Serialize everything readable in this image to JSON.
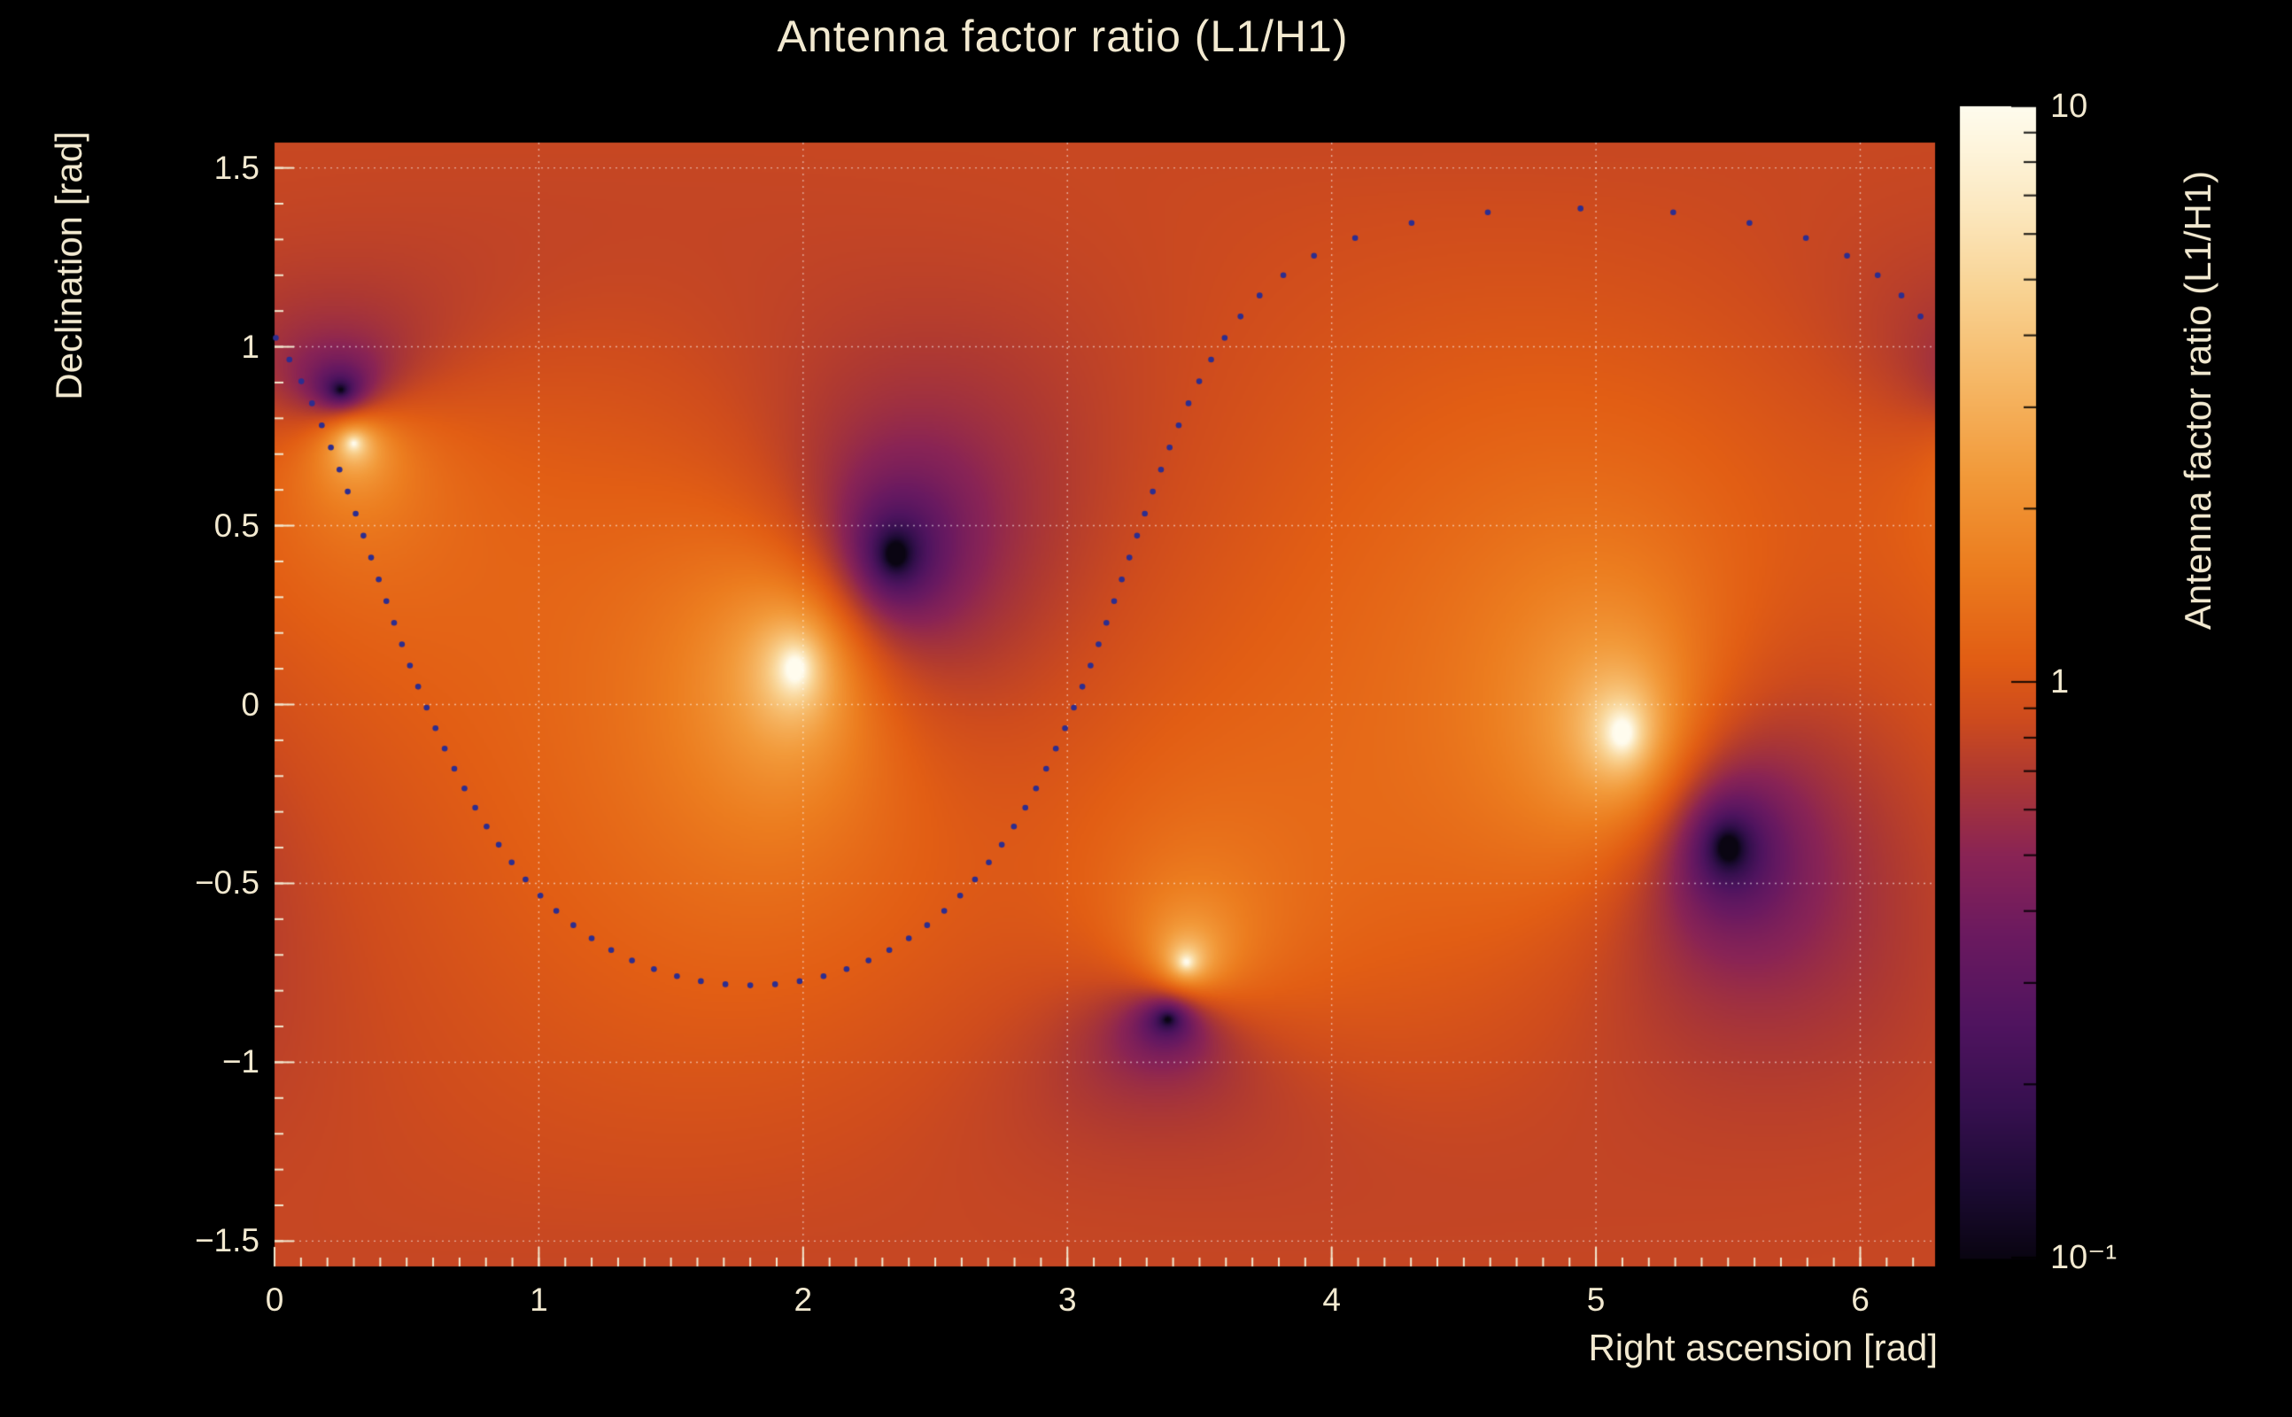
{
  "title": "Antenna factor ratio (L1/H1)",
  "colors": {
    "background": "#000000",
    "text": "#f2e9d0",
    "grid": "#ffffff",
    "dot": "#2d2d8f",
    "plot_mid_orange": "#e25e14"
  },
  "chart_data": {
    "type": "heatmap",
    "title": "Antenna factor ratio (L1/H1)",
    "xlabel": "Right ascension [rad]",
    "ylabel": "Declination [rad]",
    "zlabel": "Antenna factor ratio (L1/H1)",
    "x_range": [
      0,
      6.2832
    ],
    "y_range": [
      -1.5708,
      1.5708
    ],
    "z_range": [
      0.1,
      10
    ],
    "z_scale": "log",
    "grid": true,
    "x_ticks": [
      0,
      1,
      2,
      3,
      4,
      5,
      6
    ],
    "x_tick_labels": [
      "0",
      "1",
      "2",
      "3",
      "4",
      "5",
      "6"
    ],
    "y_ticks": [
      -1.5,
      -1,
      -0.5,
      0,
      0.5,
      1,
      1.5
    ],
    "y_tick_labels": [
      "−1.5",
      "−1",
      "−0.5",
      "0",
      "0.5",
      "1",
      "1.5"
    ],
    "colorbar_tick_values": [
      10,
      1,
      0.1
    ],
    "colorbar_tick_labels": [
      "10",
      "1",
      "10⁻¹"
    ],
    "bright_spots_H1_nulls": [
      [
        1.97,
        0.1
      ],
      [
        5.1,
        -0.08
      ],
      [
        0.3,
        0.73
      ],
      [
        3.45,
        -0.72
      ]
    ],
    "dark_spots_L1_nulls": [
      [
        2.35,
        0.42
      ],
      [
        5.5,
        -0.4
      ],
      [
        0.25,
        0.88
      ],
      [
        3.38,
        -0.88
      ]
    ],
    "dotted_ring": {
      "center_ra": 1.8,
      "center_dec": 0.485,
      "radius_rad": 1.27,
      "n_dots": 90,
      "color": "#2d2d8f"
    },
    "colormap_stops": [
      [
        0.0,
        "#0a0512"
      ],
      [
        0.06,
        "#1c0b33"
      ],
      [
        0.13,
        "#36104f"
      ],
      [
        0.2,
        "#4f145f"
      ],
      [
        0.28,
        "#6b1a60"
      ],
      [
        0.35,
        "#8a2455"
      ],
      [
        0.42,
        "#b03a31"
      ],
      [
        0.47,
        "#cf4c1d"
      ],
      [
        0.52,
        "#e25e14"
      ],
      [
        0.6,
        "#ec7d1f"
      ],
      [
        0.68,
        "#f29a3a"
      ],
      [
        0.76,
        "#f6b765"
      ],
      [
        0.84,
        "#f9d393"
      ],
      [
        0.91,
        "#fce8bf"
      ],
      [
        0.96,
        "#fef4da"
      ],
      [
        1.0,
        "#fffcee"
      ]
    ]
  }
}
